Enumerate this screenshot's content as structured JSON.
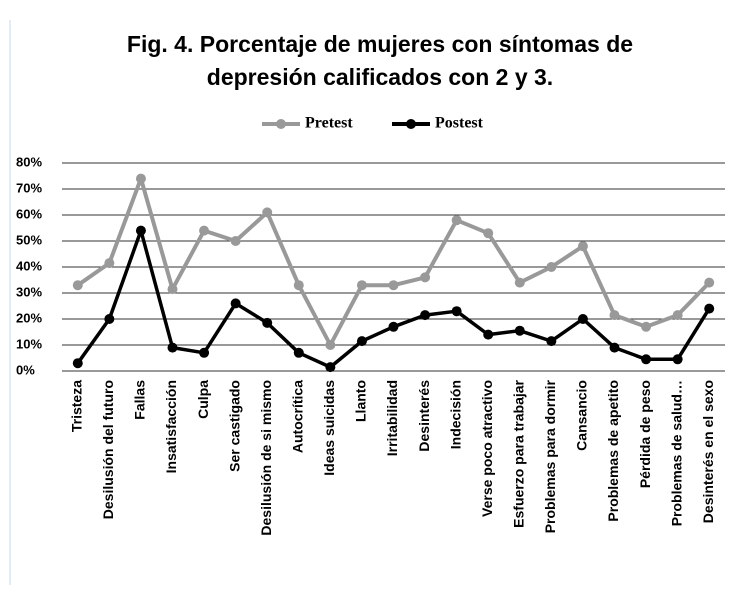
{
  "chart_data": {
    "type": "line",
    "title": "Fig. 4. Porcentaje de mujeres con síntomas de depresión calificados con 2 y 3.",
    "categories": [
      "Tristeza",
      "Desilusión del futuro",
      "Fallas",
      "Insatisfacción",
      "Culpa",
      "Ser castigado",
      "Desilusión de si mismo",
      "Autocrítica",
      "Ideas suicidas",
      "Llanto",
      "Irritabilidad",
      "Desinterés",
      "Indecisión",
      "Verse poco atractivo",
      "Esfuerzo para trabajar",
      "Problemas para dormir",
      "Cansancio",
      "Problemas de apetito",
      "Pérdida de peso",
      "Problemas de salud…",
      "Desinterés en el sexo"
    ],
    "series": [
      {
        "name": "Pretest",
        "color": "#999999",
        "values": [
          33,
          41.5,
          74,
          31.5,
          54,
          50,
          61,
          33,
          10,
          33,
          33,
          36,
          58,
          53,
          34,
          40,
          48,
          21.5,
          17,
          21.5,
          34
        ]
      },
      {
        "name": "Postest",
        "color": "#000000",
        "values": [
          3,
          20,
          54,
          9,
          7,
          26,
          18.5,
          7,
          1.5,
          11.5,
          17,
          21.5,
          23,
          14,
          15.5,
          11.5,
          20,
          9,
          4.5,
          4.5,
          24
        ]
      }
    ],
    "ylim": [
      0,
      80
    ],
    "yticks": [
      {
        "value": 0,
        "label": "0%"
      },
      {
        "value": 10,
        "label": "10%"
      },
      {
        "value": 20,
        "label": "20%"
      },
      {
        "value": 30,
        "label": "30%"
      },
      {
        "value": 40,
        "label": "40%"
      },
      {
        "value": 50,
        "label": "50%"
      },
      {
        "value": 60,
        "label": "60%"
      },
      {
        "value": 70,
        "label": "70%"
      },
      {
        "value": 80,
        "label": "80%"
      }
    ],
    "grid": true,
    "legend": "top"
  }
}
